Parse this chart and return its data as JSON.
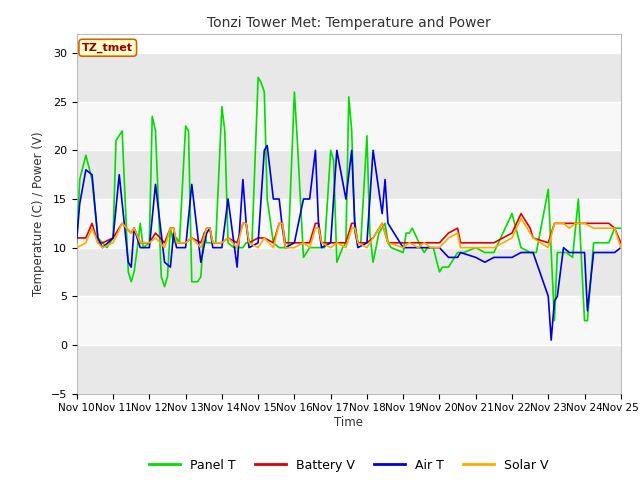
{
  "title": "Tonzi Tower Met: Temperature and Power",
  "ylabel": "Temperature (C) / Power (V)",
  "xlabel": "Time",
  "ylim": [
    -5,
    32
  ],
  "yticks": [
    -5,
    0,
    5,
    10,
    15,
    20,
    25,
    30
  ],
  "xtick_labels": [
    "Nov 10",
    "Nov 11",
    "Nov 12",
    "Nov 13",
    "Nov 14",
    "Nov 15",
    "Nov 16",
    "Nov 17",
    "Nov 18",
    "Nov 19",
    "Nov 20",
    "Nov 21",
    "Nov 22",
    "Nov 23",
    "Nov 24",
    "Nov 25"
  ],
  "label_box_text": "TZ_tmet",
  "label_box_facecolor": "#ffffcc",
  "label_box_edgecolor": "#cc6600",
  "label_box_textcolor": "#990000",
  "fig_bg_color": "#ffffff",
  "plot_bg_color": "#ffffff",
  "band_dark": "#e8e8e8",
  "band_light": "#f8f8f8",
  "colors": {
    "Panel T": "#00dd00",
    "Battery V": "#dd0000",
    "Air T": "#0000dd",
    "Solar V": "#ffaa00"
  },
  "legend_entries": [
    "Panel T",
    "Battery V",
    "Air T",
    "Solar V"
  ],
  "panel_t": {
    "x": [
      10.0,
      10.08,
      10.25,
      10.42,
      10.5,
      10.58,
      10.71,
      10.83,
      11.0,
      11.08,
      11.25,
      11.42,
      11.5,
      11.58,
      11.67,
      11.75,
      11.83,
      12.0,
      12.08,
      12.17,
      12.33,
      12.42,
      12.5,
      12.58,
      12.67,
      12.75,
      12.83,
      13.0,
      13.08,
      13.17,
      13.33,
      13.42,
      13.5,
      13.58,
      13.67,
      13.75,
      13.83,
      14.0,
      14.08,
      14.17,
      14.33,
      14.42,
      14.5,
      14.58,
      14.67,
      14.75,
      14.83,
      15.0,
      15.08,
      15.17,
      15.25,
      15.42,
      15.58,
      15.67,
      15.75,
      15.83,
      16.0,
      16.08,
      16.25,
      16.42,
      16.5,
      16.58,
      16.67,
      16.75,
      16.83,
      17.0,
      17.08,
      17.17,
      17.33,
      17.42,
      17.5,
      17.58,
      17.67,
      17.75,
      17.83,
      18.0,
      18.08,
      18.17,
      18.33,
      18.5,
      18.58,
      18.67,
      19.0,
      19.08,
      19.17,
      19.25,
      19.5,
      19.58,
      19.67,
      19.83,
      20.0,
      20.08,
      20.25,
      20.5,
      20.67,
      21.0,
      21.25,
      21.5,
      22.0,
      22.25,
      22.5,
      22.67,
      23.0,
      23.17,
      23.25,
      23.5,
      23.67,
      23.83,
      24.0,
      24.08,
      24.25,
      24.5,
      24.67,
      24.83,
      25.0
    ],
    "y": [
      10.5,
      17.0,
      19.5,
      17.0,
      14.0,
      11.0,
      10.5,
      10.0,
      11.0,
      21.0,
      22.0,
      7.5,
      6.5,
      7.5,
      10.0,
      12.5,
      10.0,
      10.5,
      23.5,
      22.0,
      7.0,
      6.0,
      7.0,
      12.0,
      10.5,
      11.0,
      10.5,
      22.5,
      22.0,
      6.5,
      6.5,
      7.0,
      11.5,
      10.5,
      10.5,
      10.5,
      10.5,
      24.5,
      22.0,
      10.5,
      10.0,
      10.0,
      10.0,
      10.0,
      10.5,
      10.5,
      10.5,
      27.5,
      27.0,
      26.0,
      15.0,
      10.5,
      10.0,
      10.0,
      10.0,
      10.0,
      26.0,
      21.0,
      9.0,
      10.0,
      10.0,
      10.0,
      10.0,
      10.0,
      10.0,
      20.0,
      19.0,
      8.5,
      10.0,
      10.5,
      25.5,
      22.0,
      11.5,
      10.5,
      10.5,
      21.5,
      11.5,
      8.5,
      11.5,
      12.5,
      10.5,
      10.0,
      9.5,
      11.5,
      11.5,
      12.0,
      10.0,
      9.5,
      10.0,
      10.0,
      7.5,
      8.0,
      8.0,
      9.5,
      9.5,
      10.0,
      9.5,
      9.5,
      13.5,
      10.0,
      9.5,
      9.5,
      16.0,
      2.5,
      9.5,
      9.5,
      9.0,
      15.0,
      2.5,
      2.5,
      10.5,
      10.5,
      10.5,
      12.0,
      12.0
    ]
  },
  "battery_v": {
    "x": [
      10.0,
      10.25,
      10.42,
      10.58,
      10.71,
      11.0,
      11.25,
      11.5,
      11.58,
      11.75,
      12.0,
      12.17,
      12.42,
      12.58,
      12.67,
      12.75,
      13.0,
      13.17,
      13.42,
      13.58,
      13.67,
      13.75,
      14.0,
      14.17,
      14.42,
      14.58,
      14.67,
      14.75,
      15.0,
      15.17,
      15.42,
      15.58,
      15.67,
      15.75,
      16.0,
      16.25,
      16.42,
      16.58,
      16.67,
      16.75,
      17.0,
      17.17,
      17.42,
      17.58,
      17.67,
      17.75,
      18.0,
      18.17,
      18.42,
      18.58,
      19.0,
      19.17,
      19.42,
      19.58,
      19.75,
      20.0,
      20.25,
      20.5,
      20.58,
      21.0,
      21.25,
      21.5,
      22.0,
      22.25,
      22.5,
      22.58,
      23.0,
      23.17,
      23.42,
      23.58,
      23.75,
      24.0,
      24.25,
      24.5,
      24.67,
      24.83,
      25.0
    ],
    "y": [
      11.0,
      11.0,
      12.5,
      10.5,
      10.5,
      11.0,
      12.5,
      11.5,
      12.0,
      10.5,
      10.5,
      11.5,
      10.5,
      12.0,
      12.0,
      10.5,
      10.5,
      11.0,
      10.5,
      12.0,
      12.0,
      10.5,
      10.5,
      11.0,
      10.5,
      12.5,
      12.5,
      10.5,
      11.0,
      11.0,
      10.5,
      12.5,
      12.5,
      10.5,
      10.5,
      10.5,
      10.5,
      12.5,
      12.5,
      10.5,
      10.5,
      10.5,
      10.5,
      12.5,
      12.5,
      10.5,
      10.5,
      11.0,
      12.5,
      10.5,
      10.5,
      10.5,
      10.5,
      10.5,
      10.5,
      10.5,
      11.5,
      12.0,
      10.5,
      10.5,
      10.5,
      10.5,
      11.5,
      13.5,
      12.0,
      11.0,
      10.5,
      12.5,
      12.5,
      12.5,
      12.5,
      12.5,
      12.5,
      12.5,
      12.5,
      12.0,
      10.5
    ]
  },
  "air_t": {
    "x": [
      10.0,
      10.08,
      10.25,
      10.42,
      10.58,
      10.71,
      11.0,
      11.17,
      11.42,
      11.5,
      11.58,
      11.75,
      12.0,
      12.17,
      12.42,
      12.58,
      12.67,
      12.75,
      13.0,
      13.17,
      13.42,
      13.58,
      13.67,
      13.75,
      14.0,
      14.17,
      14.42,
      14.58,
      14.67,
      14.75,
      15.0,
      15.17,
      15.25,
      15.42,
      15.58,
      15.67,
      15.75,
      16.0,
      16.25,
      16.42,
      16.58,
      16.67,
      16.75,
      17.0,
      17.17,
      17.42,
      17.58,
      17.67,
      17.75,
      18.0,
      18.17,
      18.42,
      18.5,
      18.58,
      19.0,
      19.25,
      19.42,
      19.58,
      19.75,
      20.0,
      20.25,
      20.5,
      20.58,
      21.0,
      21.25,
      21.5,
      22.0,
      22.25,
      22.5,
      22.58,
      23.0,
      23.08,
      23.17,
      23.25,
      23.42,
      23.58,
      23.75,
      24.0,
      24.08,
      24.25,
      24.5,
      24.67,
      24.83,
      25.0
    ],
    "y": [
      11.0,
      14.5,
      18.0,
      17.5,
      11.0,
      10.0,
      11.0,
      17.5,
      8.5,
      8.0,
      12.0,
      10.0,
      10.0,
      16.5,
      8.5,
      8.0,
      11.5,
      10.0,
      10.0,
      16.5,
      8.5,
      11.5,
      12.0,
      10.0,
      10.0,
      15.0,
      8.0,
      17.0,
      12.5,
      10.0,
      10.5,
      20.0,
      20.5,
      15.0,
      15.0,
      12.0,
      10.0,
      10.5,
      15.0,
      15.0,
      20.0,
      12.0,
      10.0,
      10.5,
      20.0,
      15.0,
      20.0,
      12.0,
      10.0,
      10.5,
      20.0,
      13.5,
      17.0,
      12.5,
      10.0,
      10.0,
      10.0,
      10.0,
      10.0,
      10.0,
      9.0,
      9.0,
      9.5,
      9.0,
      8.5,
      9.0,
      9.0,
      9.5,
      9.5,
      9.5,
      5.0,
      0.5,
      4.5,
      5.0,
      10.0,
      9.5,
      9.5,
      9.5,
      3.5,
      9.5,
      9.5,
      9.5,
      9.5,
      10.0
    ]
  },
  "solar_v": {
    "x": [
      10.0,
      10.25,
      10.42,
      10.58,
      10.71,
      11.0,
      11.25,
      11.5,
      11.58,
      11.75,
      12.0,
      12.17,
      12.42,
      12.58,
      12.67,
      12.75,
      13.0,
      13.17,
      13.42,
      13.58,
      13.67,
      13.75,
      14.0,
      14.17,
      14.42,
      14.58,
      14.67,
      14.75,
      15.0,
      15.17,
      15.42,
      15.58,
      15.67,
      15.75,
      16.0,
      16.25,
      16.42,
      16.58,
      16.67,
      16.75,
      17.0,
      17.17,
      17.42,
      17.58,
      17.67,
      17.75,
      18.0,
      18.17,
      18.42,
      18.58,
      19.0,
      19.17,
      19.42,
      19.58,
      19.75,
      20.0,
      20.25,
      20.5,
      20.58,
      21.0,
      21.25,
      21.5,
      22.0,
      22.25,
      22.5,
      22.58,
      23.0,
      23.17,
      23.42,
      23.58,
      23.75,
      24.0,
      24.25,
      24.5,
      24.67,
      24.83,
      25.0
    ],
    "y": [
      10.0,
      10.5,
      12.0,
      10.5,
      10.0,
      10.5,
      12.5,
      11.5,
      12.0,
      10.5,
      10.5,
      11.0,
      10.0,
      12.0,
      12.0,
      10.5,
      10.5,
      11.0,
      10.0,
      12.0,
      12.0,
      10.5,
      10.5,
      11.0,
      10.0,
      12.5,
      12.5,
      10.5,
      10.0,
      11.0,
      10.0,
      12.5,
      12.5,
      10.0,
      10.0,
      10.5,
      10.0,
      12.0,
      12.0,
      10.5,
      10.0,
      10.5,
      10.0,
      12.0,
      12.0,
      10.5,
      10.0,
      11.0,
      12.5,
      10.5,
      10.0,
      10.5,
      10.0,
      10.5,
      10.0,
      10.0,
      11.0,
      11.5,
      10.0,
      10.0,
      10.0,
      10.0,
      11.0,
      13.0,
      11.5,
      11.0,
      10.0,
      12.5,
      12.5,
      12.0,
      12.5,
      12.5,
      12.0,
      12.0,
      12.0,
      12.0,
      10.0
    ]
  }
}
